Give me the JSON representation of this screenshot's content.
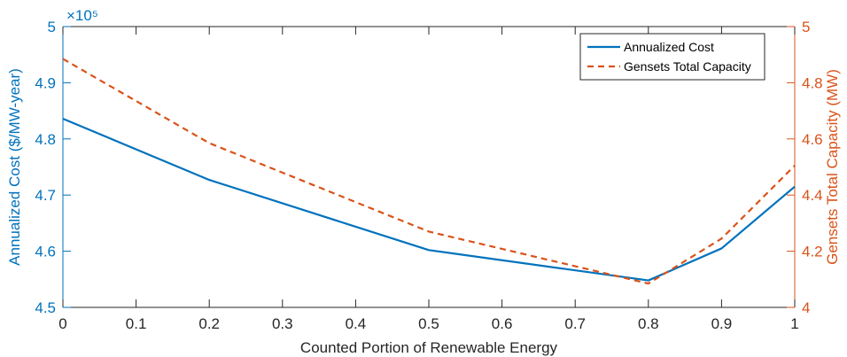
{
  "chart_data": {
    "type": "line",
    "x": [
      0,
      0.2,
      0.5,
      0.8,
      0.9,
      1
    ],
    "xlabel": "Counted Portion of Renewable Energy",
    "xlim": [
      0,
      1
    ],
    "xticks": [
      "0",
      "0.1",
      "0.2",
      "0.3",
      "0.4",
      "0.5",
      "0.6",
      "0.7",
      "0.8",
      "0.9",
      "1"
    ],
    "y_left": {
      "label": "Annualized Cost ($/MW-year)",
      "lim": [
        4.5,
        5.0
      ],
      "ticks": [
        "4.5",
        "4.6",
        "4.7",
        "4.8",
        "4.9",
        "5"
      ],
      "exponent_label": "×10⁵",
      "color": "#0072BD"
    },
    "y_right": {
      "label": "Gensets Total Capacity (MW)",
      "lim": [
        4.0,
        5.0
      ],
      "ticks": [
        "4",
        "4.2",
        "4.4",
        "4.6",
        "4.8",
        "5"
      ],
      "color": "#D95319"
    },
    "series": [
      {
        "name": "Annualized Cost",
        "axis": "left",
        "style": "solid",
        "color": "#0072BD",
        "values": [
          483600,
          472700,
          460200,
          454800,
          460500,
          471500
        ]
      },
      {
        "name": "Gensets Total Capacity",
        "axis": "right",
        "style": "dashed",
        "color": "#D95319",
        "values": [
          4.885,
          4.585,
          4.27,
          4.085,
          4.245,
          4.505
        ]
      }
    ],
    "legend_position": "top-right",
    "grid": false
  }
}
